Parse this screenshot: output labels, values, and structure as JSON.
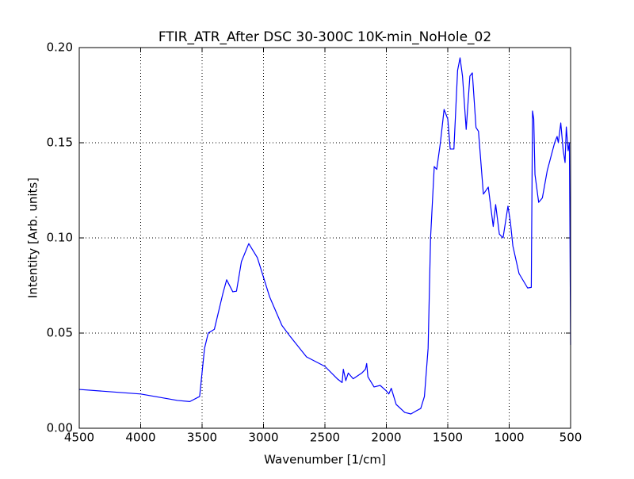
{
  "chart_data": {
    "type": "line",
    "title": "FTIR_ATR_After DSC 30-300C 10K-min_NoHole_02",
    "xlabel": "Wavenumber [1/cm]",
    "ylabel": "Intentity [Arb. units]",
    "color": "#0000ff",
    "grid": true,
    "xlim": [
      4500,
      500
    ],
    "ylim": [
      0,
      0.2
    ],
    "xticks": [
      4500,
      4000,
      3500,
      3000,
      2500,
      2000,
      1500,
      1000,
      500
    ],
    "yticks": [
      {
        "value": 0,
        "label": "0.00"
      },
      0.05,
      {
        "value": 0.1,
        "label": "0.10"
      },
      0.15,
      {
        "value": 0.2,
        "label": "0.20"
      }
    ],
    "x": [
      4500,
      4000,
      3700,
      3600,
      3520,
      3480,
      3450,
      3400,
      3330,
      3300,
      3250,
      3220,
      3180,
      3120,
      3050,
      2950,
      2850,
      2780,
      2650,
      2500,
      2400,
      2360,
      2350,
      2330,
      2310,
      2270,
      2200,
      2170,
      2160,
      2150,
      2100,
      2050,
      2000,
      1980,
      1960,
      1920,
      1850,
      1800,
      1760,
      1720,
      1690,
      1660,
      1640,
      1610,
      1590,
      1560,
      1530,
      1500,
      1480,
      1450,
      1420,
      1400,
      1380,
      1350,
      1320,
      1300,
      1270,
      1250,
      1210,
      1170,
      1130,
      1110,
      1080,
      1050,
      1010,
      990,
      970,
      920,
      850,
      820,
      810,
      800,
      790,
      760,
      730,
      690,
      630,
      610,
      600,
      580,
      560,
      545,
      535,
      520,
      510,
      505,
      500
    ],
    "values": [
      0.0204,
      0.018,
      0.0146,
      0.014,
      0.0167,
      0.042,
      0.05,
      0.052,
      0.071,
      0.078,
      0.0717,
      0.072,
      0.0875,
      0.097,
      0.0896,
      0.069,
      0.054,
      0.048,
      0.0375,
      0.0325,
      0.026,
      0.024,
      0.031,
      0.025,
      0.029,
      0.026,
      0.029,
      0.031,
      0.034,
      0.027,
      0.0217,
      0.0225,
      0.0196,
      0.018,
      0.021,
      0.0125,
      0.0083,
      0.0075,
      0.009,
      0.0104,
      0.0167,
      0.042,
      0.1,
      0.1375,
      0.136,
      0.15,
      0.1675,
      0.1625,
      0.1467,
      0.1467,
      0.188,
      0.1946,
      0.185,
      0.157,
      0.185,
      0.1867,
      0.158,
      0.156,
      0.123,
      0.1267,
      0.106,
      0.1175,
      0.102,
      0.1,
      0.1167,
      0.1083,
      0.0958,
      0.0813,
      0.0737,
      0.074,
      0.1667,
      0.1625,
      0.1333,
      0.1187,
      0.121,
      0.1354,
      0.15,
      0.1533,
      0.15,
      0.1604,
      0.1458,
      0.1396,
      0.1583,
      0.1458,
      0.15,
      0.1,
      0.0438
    ]
  }
}
